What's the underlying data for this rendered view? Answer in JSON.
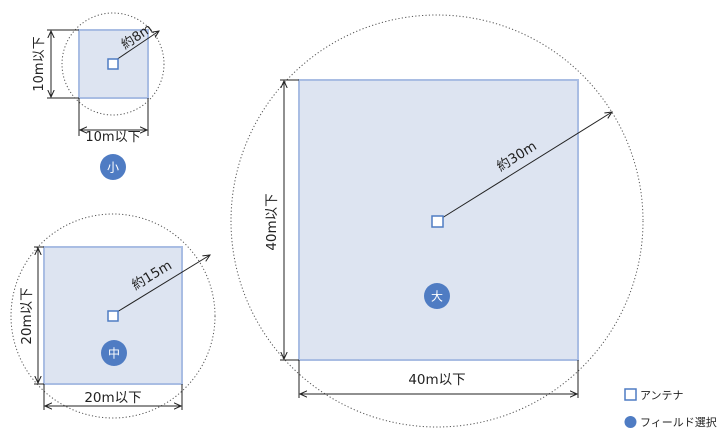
{
  "fields": {
    "small": {
      "badge": "小",
      "width_label": "10m以下",
      "height_label": "10m以下",
      "radius_label": "約8m"
    },
    "medium": {
      "badge": "中",
      "width_label": "20m以下",
      "height_label": "20m以下",
      "radius_label": "約15m"
    },
    "large": {
      "badge": "大",
      "width_label": "40m以下",
      "height_label": "40m以下",
      "radius_label": "約30m"
    }
  },
  "legend": {
    "antenna_label": "アンテナ",
    "field_select_label": "フィールド選択"
  },
  "colors": {
    "field_fill": "#dde4f1",
    "field_stroke": "#a9bde3",
    "accent": "#4f7cc3"
  },
  "icons": {
    "antenna": "square-outline-icon",
    "field_select": "filled-circle-icon"
  }
}
